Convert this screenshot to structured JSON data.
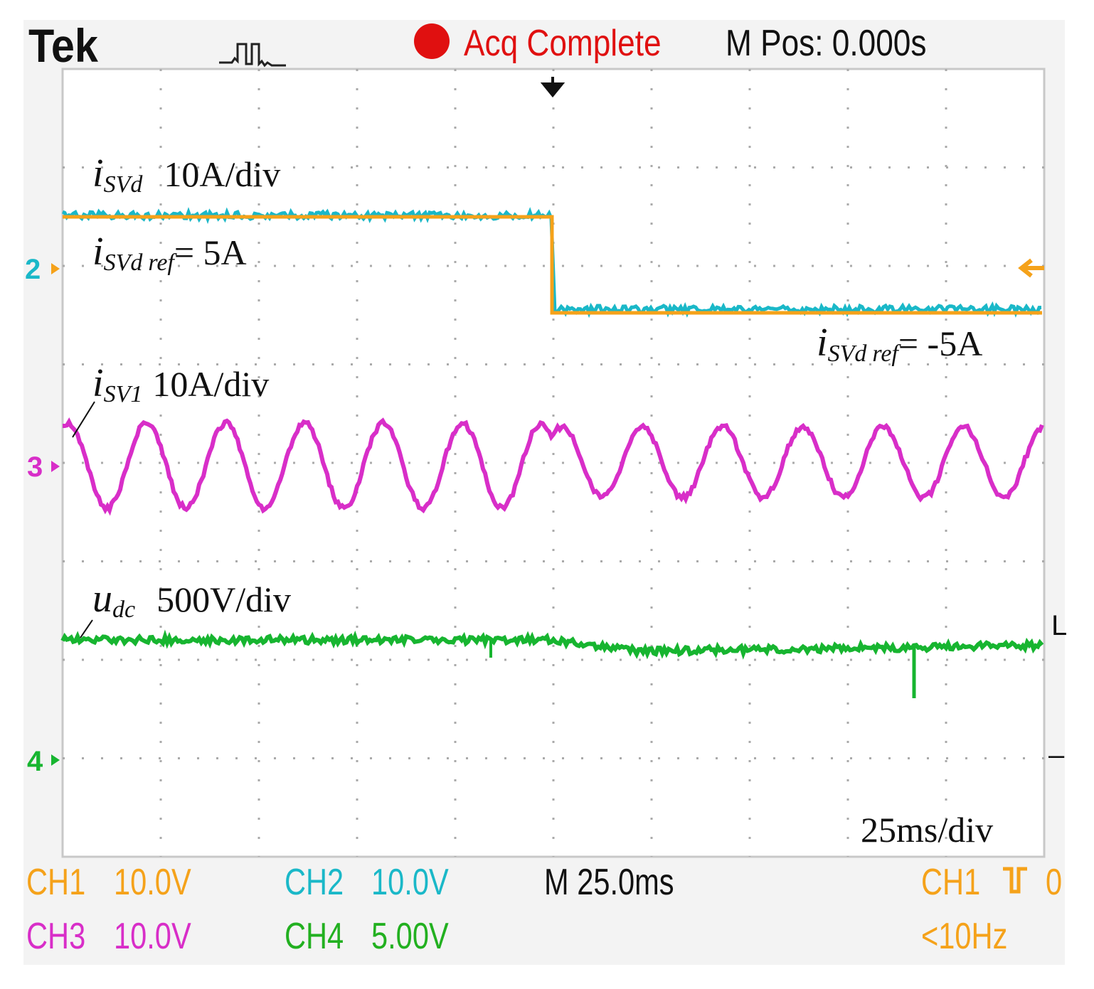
{
  "header": {
    "brand": "Tek",
    "status": "Acq Complete",
    "position": "M Pos: 0.000s"
  },
  "channel_markers": {
    "ch2": "2",
    "ch3": "3",
    "ch4": "4",
    "right_top": "L",
    "right_bottom": "–"
  },
  "annotations": [
    {
      "symbol": "i",
      "subscript": "SVd",
      "text": "10A/div"
    },
    {
      "symbol": "i",
      "subscript": "SVd",
      "subscript2": "ref",
      "text": "= 5A"
    },
    {
      "symbol": "i",
      "subscript": "SVd",
      "subscript2": "ref",
      "text": "= -5A"
    },
    {
      "symbol": "i",
      "subscript": "SV1",
      "text": "10A/div"
    },
    {
      "symbol": "u",
      "subscript": "dc",
      "text": "500V/div"
    },
    {
      "text": "25ms/div"
    }
  ],
  "footer": {
    "row1": [
      {
        "label": "CH1",
        "value": "10.0V"
      },
      {
        "label": "CH2",
        "value": "10.0V"
      }
    ],
    "timebase": "M 25.0ms",
    "trigger_source": "CH1",
    "trigger_level": "0",
    "row2": [
      {
        "label": "CH3",
        "value": "10.0V"
      },
      {
        "label": "CH4",
        "value": "5.00V"
      }
    ],
    "trigger_freq": "<10Hz"
  }
}
